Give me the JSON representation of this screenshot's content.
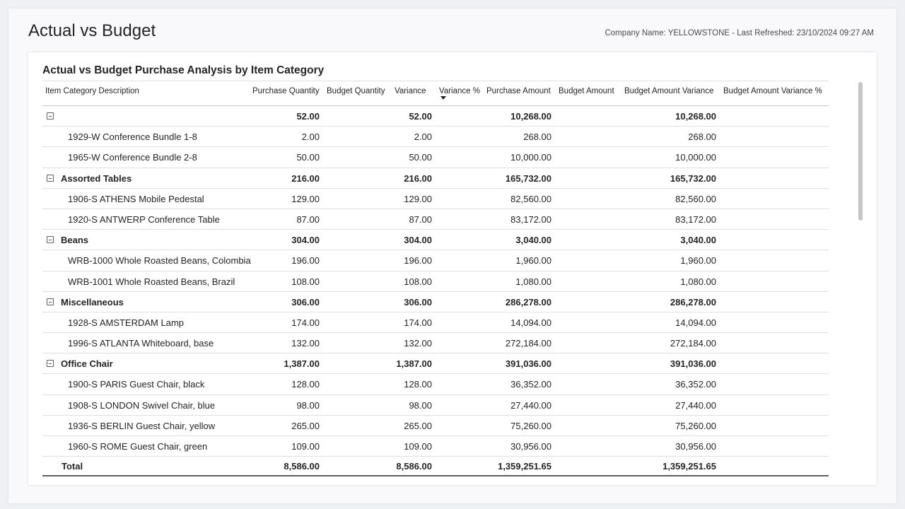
{
  "page": {
    "title": "Actual vs Budget",
    "company_info": "Company Name: YELLOWSTONE - Last Refreshed: 23/10/2024 09:27 AM"
  },
  "visual": {
    "title": "Actual vs Budget Purchase Analysis by Item Category",
    "columns": [
      "Item Category Description",
      "Purchase Quantity",
      "Budget Quantity",
      "Variance",
      "Variance %",
      "Purchase Amount",
      "Budget Amount",
      "Budget Amount Variance",
      "Budget Amount Variance %"
    ],
    "sorted_column": "Variance %"
  },
  "rows": [
    {
      "type": "group",
      "label": "",
      "pq": "52.00",
      "var": "52.00",
      "pa": "10,268.00",
      "bav": "10,268.00"
    },
    {
      "type": "item",
      "label": "1929-W Conference Bundle 1-8",
      "pq": "2.00",
      "var": "2.00",
      "pa": "268.00",
      "bav": "268.00"
    },
    {
      "type": "item",
      "label": "1965-W Conference Bundle 2-8",
      "pq": "50.00",
      "var": "50.00",
      "pa": "10,000.00",
      "bav": "10,000.00"
    },
    {
      "type": "group",
      "label": "Assorted Tables",
      "pq": "216.00",
      "var": "216.00",
      "pa": "165,732.00",
      "bav": "165,732.00"
    },
    {
      "type": "item",
      "label": "1906-S ATHENS Mobile Pedestal",
      "pq": "129.00",
      "var": "129.00",
      "pa": "82,560.00",
      "bav": "82,560.00"
    },
    {
      "type": "item",
      "label": "1920-S ANTWERP Conference Table",
      "pq": "87.00",
      "var": "87.00",
      "pa": "83,172.00",
      "bav": "83,172.00"
    },
    {
      "type": "group",
      "label": "Beans",
      "pq": "304.00",
      "var": "304.00",
      "pa": "3,040.00",
      "bav": "3,040.00"
    },
    {
      "type": "item",
      "label": "WRB-1000 Whole Roasted Beans, Colombia",
      "pq": "196.00",
      "var": "196.00",
      "pa": "1,960.00",
      "bav": "1,960.00"
    },
    {
      "type": "item",
      "label": "WRB-1001 Whole Roasted Beans, Brazil",
      "pq": "108.00",
      "var": "108.00",
      "pa": "1,080.00",
      "bav": "1,080.00"
    },
    {
      "type": "group",
      "label": "Miscellaneous",
      "pq": "306.00",
      "var": "306.00",
      "pa": "286,278.00",
      "bav": "286,278.00"
    },
    {
      "type": "item",
      "label": "1928-S AMSTERDAM Lamp",
      "pq": "174.00",
      "var": "174.00",
      "pa": "14,094.00",
      "bav": "14,094.00"
    },
    {
      "type": "item",
      "label": "1996-S ATLANTA Whiteboard, base",
      "pq": "132.00",
      "var": "132.00",
      "pa": "272,184.00",
      "bav": "272,184.00"
    },
    {
      "type": "group",
      "label": "Office Chair",
      "pq": "1,387.00",
      "var": "1,387.00",
      "pa": "391,036.00",
      "bav": "391,036.00"
    },
    {
      "type": "item",
      "label": "1900-S PARIS Guest Chair, black",
      "pq": "128.00",
      "var": "128.00",
      "pa": "36,352.00",
      "bav": "36,352.00"
    },
    {
      "type": "item",
      "label": "1908-S LONDON Swivel Chair, blue",
      "pq": "98.00",
      "var": "98.00",
      "pa": "27,440.00",
      "bav": "27,440.00"
    },
    {
      "type": "item",
      "label": "1936-S BERLIN Guest Chair, yellow",
      "pq": "265.00",
      "var": "265.00",
      "pa": "75,260.00",
      "bav": "75,260.00"
    },
    {
      "type": "item",
      "label": "1960-S ROME Guest Chair, green",
      "pq": "109.00",
      "var": "109.00",
      "pa": "30,956.00",
      "bav": "30,956.00"
    }
  ],
  "total": {
    "label": "Total",
    "pq": "8,586.00",
    "var": "8,586.00",
    "pa": "1,359,251.65",
    "bav": "1,359,251.65"
  }
}
